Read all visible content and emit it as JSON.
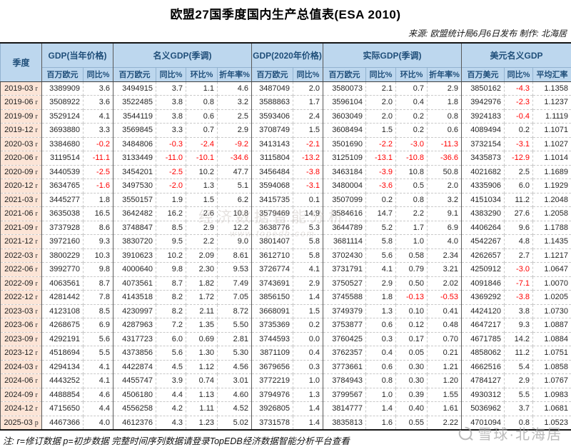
{
  "title": "欧盟27国季度国内生产总值表(ESA 2010)",
  "source": "来源: 欧盟统计局6月6日发布 制作: 北海居",
  "footer": "注: r=修订数据 p=初步数据 完整时间序列数据请登录TopEDB经济数据智能分析平台查看",
  "watermark": {
    "center_line1": "经济数据智能分析",
    "center_line2": "www.topedb.com",
    "corner": "雪球·北海居"
  },
  "colors": {
    "header_bg": "#bdd7ee",
    "header_text": "#1f4e79",
    "quarter_col_bg": "#fce4d6",
    "negative_value": "#ff0000",
    "positive_value": "#262626"
  },
  "table": {
    "groups": [
      {
        "label": "季度"
      },
      {
        "label": "GDP(当年价格)",
        "cols": [
          "百万欧元",
          "同比%"
        ]
      },
      {
        "label": "名义GDP(季调)",
        "cols": [
          "百万欧元",
          "同比%",
          "环比%",
          "折年率%"
        ]
      },
      {
        "label": "GDP(2020年价格)",
        "cols": [
          "百万欧元",
          "同比%"
        ]
      },
      {
        "label": "实际GDP(季调)",
        "cols": [
          "百万欧元",
          "同比%",
          "环比%",
          "折年率%"
        ]
      },
      {
        "label": "美元名义GDP",
        "cols": [
          "百万美元",
          "同比%",
          "平均汇率"
        ]
      }
    ],
    "rows": [
      {
        "quarter": "2019-03",
        "flag": "r",
        "values": [
          "3389909",
          "3.6",
          "3494915",
          "3.7",
          "1.1",
          "4.6",
          "3487049",
          "2.0",
          "3580073",
          "2.1",
          "0.7",
          "2.9",
          "3850162",
          "-4.3",
          "1.1358"
        ]
      },
      {
        "quarter": "2019-06",
        "flag": "r",
        "values": [
          "3508922",
          "3.6",
          "3522485",
          "3.8",
          "0.8",
          "3.2",
          "3588863",
          "1.7",
          "3596104",
          "2.0",
          "0.4",
          "1.8",
          "3942976",
          "-2.3",
          "1.1237"
        ]
      },
      {
        "quarter": "2019-09",
        "flag": "r",
        "values": [
          "3529124",
          "4.1",
          "3544119",
          "3.8",
          "0.6",
          "2.5",
          "3593406",
          "2.4",
          "3603049",
          "2.0",
          "0.2",
          "0.8",
          "3924183",
          "-0.4",
          "1.1119"
        ]
      },
      {
        "quarter": "2019-12",
        "flag": "r",
        "values": [
          "3693880",
          "3.3",
          "3569845",
          "3.3",
          "0.7",
          "2.9",
          "3708749",
          "1.5",
          "3608494",
          "1.5",
          "0.2",
          "0.6",
          "4089494",
          "0.2",
          "1.1071"
        ]
      },
      {
        "quarter": "2020-03",
        "flag": "r",
        "values": [
          "3384680",
          "-0.2",
          "3484806",
          "-0.3",
          "-2.4",
          "-9.2",
          "3413143",
          "-2.1",
          "3501690",
          "-2.2",
          "-3.0",
          "-11.3",
          "3732154",
          "-3.1",
          "1.1027"
        ]
      },
      {
        "quarter": "2020-06",
        "flag": "r",
        "values": [
          "3119514",
          "-11.1",
          "3133449",
          "-11.0",
          "-10.1",
          "-34.6",
          "3115804",
          "-13.2",
          "3125109",
          "-13.1",
          "-10.8",
          "-36.6",
          "3435873",
          "-12.9",
          "1.1014"
        ]
      },
      {
        "quarter": "2020-09",
        "flag": "r",
        "values": [
          "3440539",
          "-2.5",
          "3454201",
          "-2.5",
          "10.2",
          "47.7",
          "3456484",
          "-3.8",
          "3463184",
          "-3.9",
          "10.8",
          "50.8",
          "4021682",
          "2.5",
          "1.1689"
        ]
      },
      {
        "quarter": "2020-12",
        "flag": "r",
        "values": [
          "3634765",
          "-1.6",
          "3497530",
          "-2.0",
          "1.3",
          "5.1",
          "3594068",
          "-3.1",
          "3480004",
          "-3.6",
          "0.5",
          "2.0",
          "4335906",
          "6.0",
          "1.1929"
        ]
      },
      {
        "quarter": "2021-03",
        "flag": "r",
        "values": [
          "3445277",
          "1.8",
          "3550157",
          "1.9",
          "1.5",
          "6.2",
          "3415735",
          "0.1",
          "3507099",
          "0.2",
          "0.8",
          "3.2",
          "4151034",
          "11.2",
          "1.2048"
        ]
      },
      {
        "quarter": "2021-06",
        "flag": "r",
        "values": [
          "3635038",
          "16.5",
          "3642482",
          "16.2",
          "2.6",
          "10.8",
          "3579469",
          "14.9",
          "3584616",
          "14.7",
          "2.2",
          "9.1",
          "4383290",
          "27.6",
          "1.2058"
        ]
      },
      {
        "quarter": "2021-09",
        "flag": "r",
        "values": [
          "3737928",
          "8.6",
          "3748847",
          "8.5",
          "2.9",
          "12.2",
          "3638776",
          "5.3",
          "3644789",
          "5.2",
          "1.7",
          "6.9",
          "4406264",
          "9.6",
          "1.1788"
        ]
      },
      {
        "quarter": "2021-12",
        "flag": "r",
        "values": [
          "3972160",
          "9.3",
          "3830720",
          "9.5",
          "2.2",
          "9.0",
          "3801407",
          "5.8",
          "3681114",
          "5.8",
          "1.0",
          "4.0",
          "4542267",
          "4.8",
          "1.1435"
        ]
      },
      {
        "quarter": "2022-03",
        "flag": "r",
        "values": [
          "3800229",
          "10.3",
          "3910623",
          "10.2",
          "2.09",
          "8.61",
          "3612710",
          "5.8",
          "3702430",
          "5.6",
          "0.58",
          "2.34",
          "4262657",
          "2.7",
          "1.1217"
        ]
      },
      {
        "quarter": "2022-06",
        "flag": "r",
        "values": [
          "3992770",
          "9.8",
          "4000640",
          "9.8",
          "2.30",
          "9.53",
          "3726774",
          "4.1",
          "3731791",
          "4.1",
          "0.79",
          "3.21",
          "4250912",
          "-3.0",
          "1.0647"
        ]
      },
      {
        "quarter": "2022-09",
        "flag": "r",
        "values": [
          "4063561",
          "8.7",
          "4073561",
          "8.7",
          "1.82",
          "7.49",
          "3743691",
          "2.9",
          "3750527",
          "2.9",
          "0.50",
          "2.02",
          "4091846",
          "-7.1",
          "1.0070"
        ]
      },
      {
        "quarter": "2022-12",
        "flag": "r",
        "values": [
          "4281442",
          "7.8",
          "4143518",
          "8.2",
          "1.72",
          "7.05",
          "3856150",
          "1.4",
          "3745588",
          "1.8",
          "-0.13",
          "-0.53",
          "4369292",
          "-3.8",
          "1.0205"
        ]
      },
      {
        "quarter": "2023-03",
        "flag": "r",
        "values": [
          "4123108",
          "8.5",
          "4230997",
          "8.2",
          "2.11",
          "8.72",
          "3668091",
          "1.5",
          "3749379",
          "1.3",
          "0.10",
          "0.41",
          "4424120",
          "3.8",
          "1.0730"
        ]
      },
      {
        "quarter": "2023-06",
        "flag": "r",
        "values": [
          "4268675",
          "6.9",
          "4287963",
          "7.2",
          "1.35",
          "5.50",
          "3735369",
          "0.2",
          "3753877",
          "0.6",
          "0.12",
          "0.48",
          "4647217",
          "9.3",
          "1.0887"
        ]
      },
      {
        "quarter": "2023-09",
        "flag": "r",
        "values": [
          "4292191",
          "5.6",
          "4317723",
          "6.0",
          "0.69",
          "2.81",
          "3744593",
          "0.0",
          "3760425",
          "0.3",
          "0.17",
          "0.70",
          "4671785",
          "14.2",
          "1.0884"
        ]
      },
      {
        "quarter": "2023-12",
        "flag": "r",
        "values": [
          "4518694",
          "5.5",
          "4373856",
          "5.6",
          "1.30",
          "5.30",
          "3871109",
          "0.4",
          "3762357",
          "0.4",
          "0.05",
          "0.21",
          "4858062",
          "11.2",
          "1.0751"
        ]
      },
      {
        "quarter": "2024-03",
        "flag": "r",
        "values": [
          "4294134",
          "4.1",
          "4422874",
          "4.5",
          "1.12",
          "4.56",
          "3679656",
          "0.3",
          "3773661",
          "0.6",
          "0.30",
          "1.21",
          "4662516",
          "5.4",
          "1.0858"
        ]
      },
      {
        "quarter": "2024-06",
        "flag": "r",
        "values": [
          "4443252",
          "4.1",
          "4455747",
          "3.9",
          "0.74",
          "3.01",
          "3772219",
          "1.0",
          "3784943",
          "0.8",
          "0.30",
          "1.20",
          "4784127",
          "2.9",
          "1.0767"
        ]
      },
      {
        "quarter": "2024-09",
        "flag": "r",
        "values": [
          "4488854",
          "4.6",
          "4506180",
          "4.4",
          "1.13",
          "4.60",
          "3794976",
          "1.3",
          "3799567",
          "1.0",
          "0.39",
          "1.55",
          "4930312",
          "5.5",
          "1.0983"
        ]
      },
      {
        "quarter": "2024-12",
        "flag": "r",
        "values": [
          "4715650",
          "4.4",
          "4556258",
          "4.2",
          "1.11",
          "4.52",
          "3926805",
          "1.4",
          "3814777",
          "1.4",
          "0.40",
          "1.61",
          "5036962",
          "3.7",
          "1.0681"
        ]
      },
      {
        "quarter": "2025-03",
        "flag": "p",
        "values": [
          "4467366",
          "4.0",
          "4612376",
          "4.3",
          "1.23",
          "5.02",
          "3731578",
          "1.4",
          "3835813",
          "1.6",
          "0.55",
          "2.22",
          "4701094",
          "0.8",
          "1.0523"
        ]
      }
    ]
  }
}
